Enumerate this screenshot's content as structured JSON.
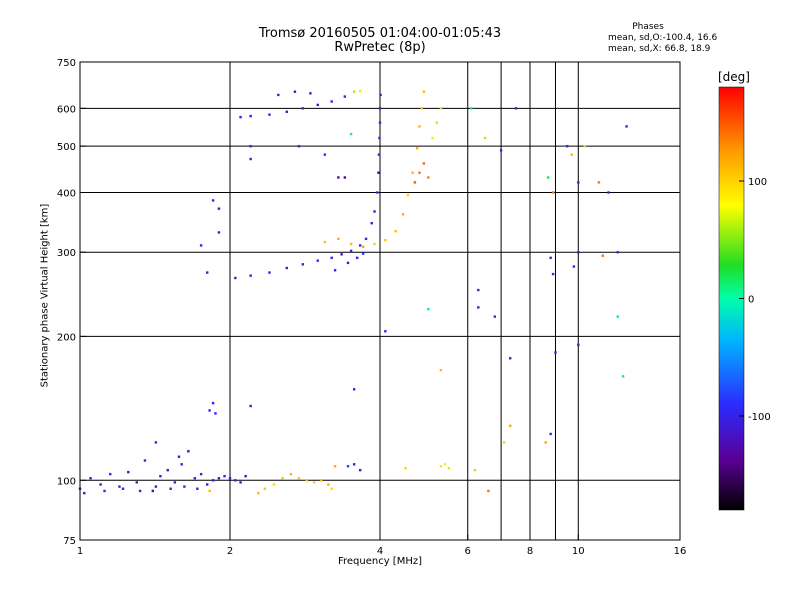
{
  "header": {
    "title": "Tromsø 20160505 01:04:00-01:05:43",
    "subtitle": "RwPretec (8p)"
  },
  "stats": {
    "heading": "Phases",
    "line1": "mean, sd,O:-100.4, 16.6",
    "line2": "mean, sd,X:  66.8, 18.9"
  },
  "colorbar": {
    "unit_label": "[deg]",
    "ticks": [
      "100",
      "0",
      "-100"
    ],
    "tick_values": [
      100,
      0,
      -100
    ],
    "range": [
      -180,
      180
    ]
  },
  "chart_data": {
    "type": "scatter",
    "xlabel": "Frequency [MHz]",
    "ylabel": "Stationary phase Virtual Height [km]",
    "x_scale": "log",
    "y_scale": "log",
    "xlim": [
      1,
      16
    ],
    "ylim": [
      75,
      750
    ],
    "x_ticks": [
      1,
      2,
      4,
      6,
      8,
      10,
      16
    ],
    "x_tick_labels": [
      "1",
      "2",
      "4",
      "6",
      "8",
      "10",
      "16"
    ],
    "y_ticks": [
      75,
      100,
      200,
      300,
      400,
      500,
      600,
      750
    ],
    "y_tick_labels": [
      "75",
      "100",
      "200",
      "300",
      "400",
      "500",
      "600",
      "750"
    ],
    "x_gridlines": [
      2,
      4,
      6,
      7,
      8,
      9,
      10
    ],
    "y_gridlines": [
      100,
      200,
      300,
      400,
      500,
      600
    ],
    "color_encoding": "phase [deg]",
    "points": [
      [
        1.0,
        96,
        -95
      ],
      [
        1.05,
        101,
        -100
      ],
      [
        1.1,
        98,
        -110
      ],
      [
        1.15,
        103,
        -90
      ],
      [
        1.2,
        97,
        -105
      ],
      [
        1.25,
        104,
        -120
      ],
      [
        1.3,
        99,
        -100
      ],
      [
        1.35,
        110,
        -95
      ],
      [
        1.4,
        95,
        -130
      ],
      [
        1.45,
        102,
        -100
      ],
      [
        1.5,
        105,
        -110
      ],
      [
        1.55,
        99,
        -90
      ],
      [
        1.6,
        108,
        -100
      ],
      [
        1.65,
        115,
        -120
      ],
      [
        1.7,
        101,
        -95
      ],
      [
        1.75,
        103,
        -100
      ],
      [
        1.8,
        98,
        -105
      ],
      [
        1.85,
        100,
        -100
      ],
      [
        1.9,
        101,
        -110
      ],
      [
        1.95,
        102,
        -100
      ],
      [
        2.0,
        101,
        -95
      ],
      [
        2.05,
        100,
        -100
      ],
      [
        2.1,
        99,
        -105
      ],
      [
        2.15,
        102,
        -110
      ],
      [
        1.02,
        94,
        -110
      ],
      [
        1.12,
        95,
        -100
      ],
      [
        1.22,
        96,
        -105
      ],
      [
        1.32,
        95,
        -100
      ],
      [
        1.42,
        97,
        -110
      ],
      [
        1.52,
        96,
        -100
      ],
      [
        1.62,
        97,
        -95
      ],
      [
        1.72,
        96,
        -100
      ],
      [
        1.82,
        95,
        110
      ],
      [
        1.42,
        120,
        -100
      ],
      [
        1.58,
        112,
        -110
      ],
      [
        1.82,
        140,
        -100
      ],
      [
        1.85,
        145,
        -105
      ],
      [
        1.87,
        138,
        -100
      ],
      [
        2.2,
        143,
        -110
      ],
      [
        3.55,
        155,
        -100
      ],
      [
        2.28,
        94,
        110
      ],
      [
        2.35,
        96,
        105
      ],
      [
        2.45,
        98,
        100
      ],
      [
        2.55,
        101,
        105
      ],
      [
        2.65,
        103,
        110
      ],
      [
        2.75,
        101,
        100
      ],
      [
        2.85,
        100,
        105
      ],
      [
        2.95,
        99,
        100
      ],
      [
        3.05,
        100,
        110
      ],
      [
        3.15,
        98,
        115
      ],
      [
        3.2,
        96,
        95
      ],
      [
        3.25,
        107,
        120
      ],
      [
        3.45,
        107,
        -80
      ],
      [
        3.55,
        108,
        -100
      ],
      [
        3.65,
        105,
        -110
      ],
      [
        4.5,
        106,
        100
      ],
      [
        5.3,
        107,
        90
      ],
      [
        5.4,
        108,
        85
      ],
      [
        5.5,
        106,
        95
      ],
      [
        2.05,
        265,
        -110
      ],
      [
        2.2,
        268,
        -105
      ],
      [
        2.4,
        272,
        -100
      ],
      [
        2.6,
        278,
        -105
      ],
      [
        2.8,
        283,
        -100
      ],
      [
        3.0,
        288,
        -95
      ],
      [
        3.2,
        292,
        -100
      ],
      [
        3.35,
        297,
        -110
      ],
      [
        3.5,
        302,
        -100
      ],
      [
        3.65,
        310,
        -90
      ],
      [
        3.75,
        320,
        -95
      ],
      [
        3.85,
        345,
        -100
      ],
      [
        3.9,
        365,
        -110
      ],
      [
        3.95,
        400,
        -100
      ],
      [
        3.97,
        440,
        -105
      ],
      [
        3.98,
        480,
        -100
      ],
      [
        3.99,
        520,
        -110
      ],
      [
        4.0,
        560,
        -95
      ],
      [
        4.0,
        600,
        -100
      ],
      [
        4.01,
        640,
        -110
      ],
      [
        3.1,
        315,
        110
      ],
      [
        3.3,
        320,
        115
      ],
      [
        3.5,
        312,
        110
      ],
      [
        3.7,
        308,
        120
      ],
      [
        3.9,
        312,
        100
      ],
      [
        4.1,
        318,
        105
      ],
      [
        4.3,
        332,
        110
      ],
      [
        4.45,
        360,
        115
      ],
      [
        4.55,
        395,
        100
      ],
      [
        4.65,
        440,
        110
      ],
      [
        4.75,
        495,
        115
      ],
      [
        4.8,
        550,
        110
      ],
      [
        4.85,
        600,
        105
      ],
      [
        4.9,
        650,
        110
      ],
      [
        4.7,
        420,
        150
      ],
      [
        4.8,
        440,
        140
      ],
      [
        4.9,
        460,
        145
      ],
      [
        5.0,
        430,
        135
      ],
      [
        5.1,
        520,
        90
      ],
      [
        5.2,
        560,
        100
      ],
      [
        5.3,
        600,
        95
      ],
      [
        1.85,
        385,
        -100
      ],
      [
        1.9,
        370,
        -110
      ],
      [
        1.9,
        330,
        -105
      ],
      [
        1.75,
        310,
        -100
      ],
      [
        1.8,
        272,
        -105
      ],
      [
        2.1,
        575,
        -100
      ],
      [
        2.2,
        578,
        -105
      ],
      [
        2.4,
        582,
        -100
      ],
      [
        2.6,
        590,
        -110
      ],
      [
        2.8,
        600,
        -100
      ],
      [
        3.0,
        610,
        -105
      ],
      [
        3.2,
        620,
        -100
      ],
      [
        3.4,
        635,
        -95
      ],
      [
        3.55,
        650,
        60
      ],
      [
        3.65,
        652,
        70
      ],
      [
        2.5,
        640,
        -100
      ],
      [
        2.7,
        650,
        -110
      ],
      [
        2.9,
        645,
        -100
      ],
      [
        2.2,
        500,
        -100
      ],
      [
        2.2,
        470,
        -105
      ],
      [
        2.75,
        500,
        -100
      ],
      [
        3.1,
        480,
        -90
      ],
      [
        3.3,
        430,
        -130
      ],
      [
        3.4,
        430,
        -135
      ],
      [
        3.5,
        530,
        10
      ],
      [
        3.25,
        275,
        -100
      ],
      [
        3.45,
        285,
        -110
      ],
      [
        3.6,
        292,
        -105
      ],
      [
        3.7,
        298,
        -90
      ],
      [
        4.1,
        205,
        -100
      ],
      [
        5.0,
        228,
        10
      ],
      [
        5.3,
        170,
        110
      ],
      [
        6.3,
        250,
        -100
      ],
      [
        6.3,
        230,
        -110
      ],
      [
        6.8,
        220,
        -100
      ],
      [
        6.1,
        600,
        10
      ],
      [
        6.5,
        520,
        60
      ],
      [
        7.0,
        490,
        -100
      ],
      [
        7.3,
        180,
        -100
      ],
      [
        7.3,
        130,
        120
      ],
      [
        7.1,
        120,
        100
      ],
      [
        6.6,
        95,
        140
      ],
      [
        8.7,
        430,
        20
      ],
      [
        8.9,
        400,
        140
      ],
      [
        8.8,
        292,
        -100
      ],
      [
        8.9,
        270,
        -90
      ],
      [
        9.0,
        185,
        -100
      ],
      [
        8.6,
        120,
        120
      ],
      [
        8.8,
        125,
        -100
      ],
      [
        9.5,
        500,
        -100
      ],
      [
        9.7,
        480,
        110
      ],
      [
        10.3,
        500,
        100
      ],
      [
        10.0,
        300,
        -110
      ],
      [
        9.8,
        280,
        -100
      ],
      [
        10.0,
        420,
        -100
      ],
      [
        10.0,
        192,
        -110
      ],
      [
        11.0,
        420,
        140
      ],
      [
        11.5,
        400,
        -100
      ],
      [
        12.0,
        300,
        -100
      ],
      [
        12.0,
        220,
        10
      ],
      [
        12.3,
        165,
        10
      ],
      [
        12.5,
        550,
        -100
      ],
      [
        11.2,
        295,
        140
      ],
      [
        7.5,
        600,
        -100
      ],
      [
        6.2,
        105,
        100
      ]
    ]
  }
}
